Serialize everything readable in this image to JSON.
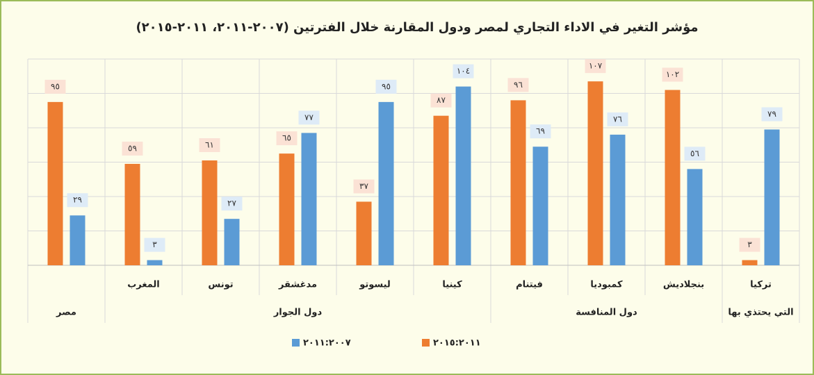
{
  "chart_data": {
    "type": "bar",
    "title": "مؤشر التغير في الاداء التجاري لمصر ودول المقارنة خلال الفترتين (٢٠٠٧-٢٠١١، ٢٠١١-٢٠١٥)",
    "categories": [
      null,
      "المغرب",
      "تونس",
      "مدغشقر",
      "ليسوتو",
      "كينيا",
      "فيتنام",
      "كمبوديا",
      "بنجلاديش",
      "تركيا"
    ],
    "groups": [
      {
        "label": "مصر",
        "size": 1
      },
      {
        "label": "دول الجوار",
        "size": 5
      },
      {
        "label": "دول المنافسة",
        "size": 3
      },
      {
        "label": "التي يحتذي بها",
        "size": 1
      }
    ],
    "series": [
      {
        "name": "٢٠١٥:٢٠١١",
        "color": "#ed7d31",
        "values": [
          95,
          59,
          61,
          65,
          37,
          87,
          96,
          107,
          102,
          3
        ],
        "value_labels": [
          "٩٥",
          "٥٩",
          "٦١",
          "٦٥",
          "٣٧",
          "٨٧",
          "٩٦",
          "١٠٧",
          "١٠٢",
          "٣"
        ],
        "label_bg": "#fbe2d5"
      },
      {
        "name": "٢٠١١:٢٠٠٧",
        "color": "#5b9bd5",
        "values": [
          29,
          3,
          27,
          77,
          95,
          104,
          69,
          76,
          56,
          79
        ],
        "value_labels": [
          "٢٩",
          "٣",
          "٢٧",
          "٧٧",
          "٩٥",
          "١٠٤",
          "٦٩",
          "٧٦",
          "٥٦",
          "٧٩"
        ],
        "label_bg": "#deebf7"
      }
    ],
    "ylim": [
      0,
      120
    ],
    "yticks": [
      0,
      20,
      40,
      60,
      80,
      100,
      120
    ],
    "grid": true
  }
}
